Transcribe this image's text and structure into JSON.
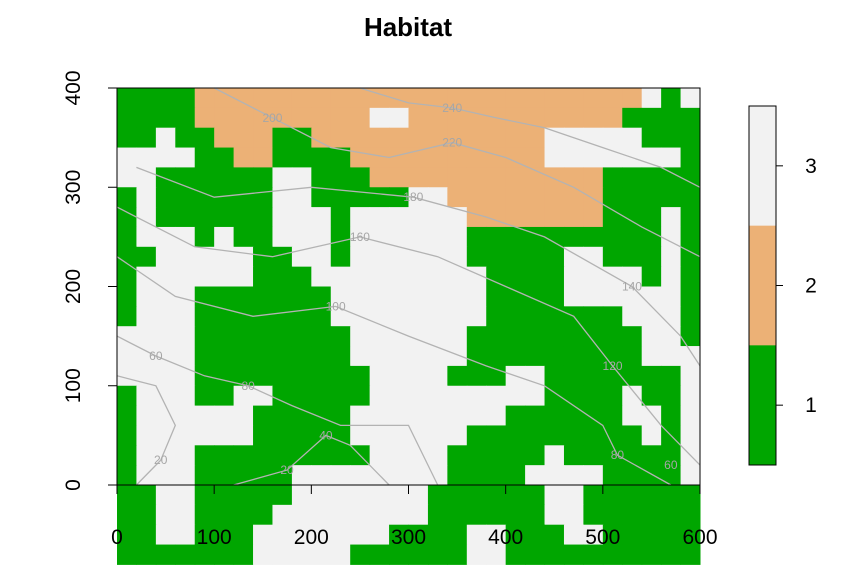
{
  "chart_data": {
    "type": "heatmap",
    "title": "Habitat",
    "xlabel": "",
    "ylabel": "",
    "xlim": [
      0,
      600
    ],
    "ylim": [
      0,
      400
    ],
    "x_ticks": [
      0,
      100,
      200,
      300,
      400,
      500,
      600
    ],
    "y_ticks": [
      0,
      100,
      200,
      300,
      400
    ],
    "cell_size": 20,
    "colors": {
      "1": "#00a600",
      "2": "#ecb176",
      "3": "#f2f2f2"
    },
    "legend": {
      "placement": "right",
      "entries": [
        {
          "value": "3",
          "color": "#f2f2f2"
        },
        {
          "value": "2",
          "color": "#ecb176"
        },
        {
          "value": "1",
          "color": "#00a600"
        }
      ]
    },
    "contour_color": "#b3b3b3",
    "contour_labels": [
      {
        "label": "20",
        "x": 45,
        "y": 25
      },
      {
        "label": "20",
        "x": 175,
        "y": 15
      },
      {
        "label": "40",
        "x": 215,
        "y": 50
      },
      {
        "label": "60",
        "x": 40,
        "y": 130
      },
      {
        "label": "80",
        "x": 135,
        "y": 100
      },
      {
        "label": "100",
        "x": 225,
        "y": 180
      },
      {
        "label": "120",
        "x": 510,
        "y": 120
      },
      {
        "label": "140",
        "x": 530,
        "y": 200
      },
      {
        "label": "160",
        "x": 250,
        "y": 250
      },
      {
        "label": "180",
        "x": 305,
        "y": 290
      },
      {
        "label": "200",
        "x": 160,
        "y": 370
      },
      {
        "label": "220",
        "x": 345,
        "y": 345
      },
      {
        "label": "240",
        "x": 345,
        "y": 380
      },
      {
        "label": "80",
        "x": 515,
        "y": 30
      },
      {
        "label": "60",
        "x": 570,
        "y": 20
      }
    ],
    "grid": [
      [
        1,
        1,
        1,
        1,
        2,
        2,
        2,
        2,
        2,
        2,
        2,
        2,
        2,
        2,
        2,
        2,
        2,
        2,
        2,
        2,
        2,
        2,
        2,
        2,
        2,
        2,
        2,
        3,
        1,
        3
      ],
      [
        1,
        1,
        1,
        1,
        2,
        2,
        2,
        2,
        2,
        2,
        2,
        2,
        2,
        3,
        3,
        2,
        2,
        2,
        2,
        2,
        2,
        2,
        2,
        2,
        2,
        2,
        1,
        1,
        1,
        1
      ],
      [
        1,
        1,
        3,
        1,
        1,
        2,
        2,
        2,
        1,
        1,
        2,
        2,
        2,
        2,
        2,
        2,
        2,
        2,
        2,
        2,
        2,
        2,
        3,
        3,
        3,
        3,
        3,
        1,
        1,
        1
      ],
      [
        3,
        3,
        3,
        3,
        1,
        1,
        2,
        2,
        1,
        1,
        1,
        1,
        2,
        2,
        2,
        2,
        2,
        2,
        2,
        2,
        2,
        2,
        3,
        3,
        3,
        3,
        3,
        3,
        3,
        1
      ],
      [
        3,
        3,
        1,
        1,
        1,
        1,
        1,
        1,
        3,
        3,
        1,
        1,
        1,
        2,
        2,
        2,
        2,
        2,
        2,
        2,
        2,
        2,
        2,
        2,
        2,
        1,
        1,
        1,
        1,
        1
      ],
      [
        1,
        3,
        1,
        1,
        1,
        1,
        1,
        1,
        3,
        3,
        1,
        1,
        1,
        1,
        1,
        3,
        3,
        2,
        2,
        2,
        2,
        2,
        2,
        2,
        2,
        1,
        1,
        1,
        1,
        1
      ],
      [
        1,
        3,
        1,
        1,
        1,
        1,
        1,
        1,
        3,
        3,
        3,
        1,
        3,
        3,
        3,
        3,
        3,
        3,
        2,
        2,
        2,
        2,
        2,
        2,
        2,
        1,
        1,
        1,
        3,
        1
      ],
      [
        1,
        3,
        3,
        3,
        1,
        3,
        1,
        1,
        3,
        3,
        3,
        1,
        3,
        3,
        3,
        3,
        3,
        3,
        1,
        1,
        1,
        1,
        1,
        1,
        1,
        1,
        1,
        1,
        3,
        1
      ],
      [
        1,
        1,
        3,
        3,
        3,
        3,
        3,
        1,
        1,
        3,
        3,
        1,
        3,
        3,
        3,
        3,
        3,
        3,
        1,
        1,
        1,
        1,
        1,
        3,
        3,
        1,
        1,
        1,
        3,
        1
      ],
      [
        1,
        3,
        3,
        3,
        3,
        3,
        3,
        1,
        1,
        1,
        3,
        3,
        3,
        3,
        3,
        3,
        3,
        3,
        3,
        1,
        1,
        1,
        1,
        3,
        3,
        3,
        3,
        1,
        3,
        1
      ],
      [
        1,
        3,
        3,
        3,
        1,
        1,
        1,
        1,
        1,
        1,
        1,
        3,
        3,
        3,
        3,
        3,
        3,
        3,
        3,
        1,
        1,
        1,
        1,
        3,
        3,
        3,
        3,
        3,
        3,
        1
      ],
      [
        1,
        3,
        3,
        3,
        1,
        1,
        1,
        1,
        1,
        1,
        1,
        3,
        3,
        3,
        3,
        3,
        3,
        3,
        3,
        1,
        1,
        1,
        1,
        1,
        1,
        1,
        3,
        3,
        3,
        1
      ],
      [
        3,
        3,
        3,
        3,
        1,
        1,
        1,
        1,
        1,
        1,
        1,
        1,
        3,
        3,
        3,
        3,
        3,
        3,
        1,
        1,
        1,
        1,
        1,
        1,
        1,
        1,
        1,
        3,
        3,
        1
      ],
      [
        3,
        3,
        3,
        3,
        1,
        1,
        1,
        1,
        1,
        1,
        1,
        1,
        3,
        3,
        3,
        3,
        3,
        3,
        1,
        1,
        1,
        1,
        1,
        1,
        1,
        1,
        1,
        3,
        3,
        3
      ],
      [
        3,
        3,
        3,
        3,
        1,
        1,
        1,
        1,
        1,
        1,
        1,
        1,
        1,
        3,
        3,
        3,
        3,
        1,
        1,
        1,
        3,
        3,
        1,
        1,
        1,
        1,
        1,
        1,
        1,
        3
      ],
      [
        1,
        3,
        3,
        3,
        1,
        1,
        3,
        3,
        1,
        1,
        1,
        1,
        1,
        3,
        3,
        3,
        3,
        3,
        3,
        3,
        3,
        3,
        1,
        1,
        1,
        1,
        3,
        1,
        1,
        3
      ],
      [
        1,
        3,
        3,
        3,
        3,
        3,
        3,
        1,
        1,
        1,
        1,
        1,
        3,
        3,
        3,
        3,
        3,
        3,
        3,
        3,
        1,
        1,
        1,
        1,
        1,
        1,
        3,
        3,
        1,
        3
      ],
      [
        1,
        3,
        3,
        3,
        3,
        3,
        3,
        1,
        1,
        1,
        1,
        1,
        3,
        3,
        3,
        3,
        3,
        3,
        1,
        1,
        1,
        1,
        1,
        1,
        1,
        1,
        1,
        3,
        1,
        3
      ],
      [
        1,
        3,
        3,
        3,
        1,
        1,
        1,
        1,
        1,
        1,
        1,
        1,
        1,
        3,
        3,
        3,
        3,
        1,
        1,
        1,
        1,
        1,
        3,
        1,
        1,
        1,
        1,
        1,
        1,
        3
      ],
      [
        1,
        3,
        3,
        3,
        1,
        1,
        1,
        1,
        1,
        3,
        3,
        3,
        3,
        3,
        3,
        3,
        3,
        1,
        1,
        1,
        1,
        3,
        3,
        3,
        3,
        1,
        1,
        1,
        1,
        3
      ],
      [
        1,
        1,
        3,
        3,
        1,
        1,
        1,
        1,
        1,
        3,
        3,
        3,
        3,
        3,
        3,
        3,
        1,
        1,
        1,
        1,
        1,
        1,
        3,
        3,
        1,
        1,
        1,
        1,
        1,
        1
      ],
      [
        1,
        1,
        3,
        3,
        1,
        1,
        1,
        1,
        3,
        3,
        3,
        3,
        3,
        3,
        3,
        3,
        1,
        1,
        1,
        1,
        1,
        1,
        3,
        3,
        1,
        1,
        1,
        1,
        1,
        1
      ],
      [
        1,
        1,
        3,
        3,
        1,
        1,
        1,
        3,
        3,
        3,
        3,
        3,
        3,
        3,
        1,
        1,
        1,
        1,
        3,
        3,
        1,
        1,
        1,
        3,
        3,
        1,
        1,
        1,
        1,
        1
      ],
      [
        1,
        1,
        1,
        1,
        1,
        1,
        1,
        3,
        3,
        3,
        3,
        3,
        1,
        1,
        1,
        1,
        1,
        1,
        3,
        3,
        1,
        1,
        1,
        1,
        1,
        1,
        1,
        1,
        1,
        1
      ]
    ]
  }
}
